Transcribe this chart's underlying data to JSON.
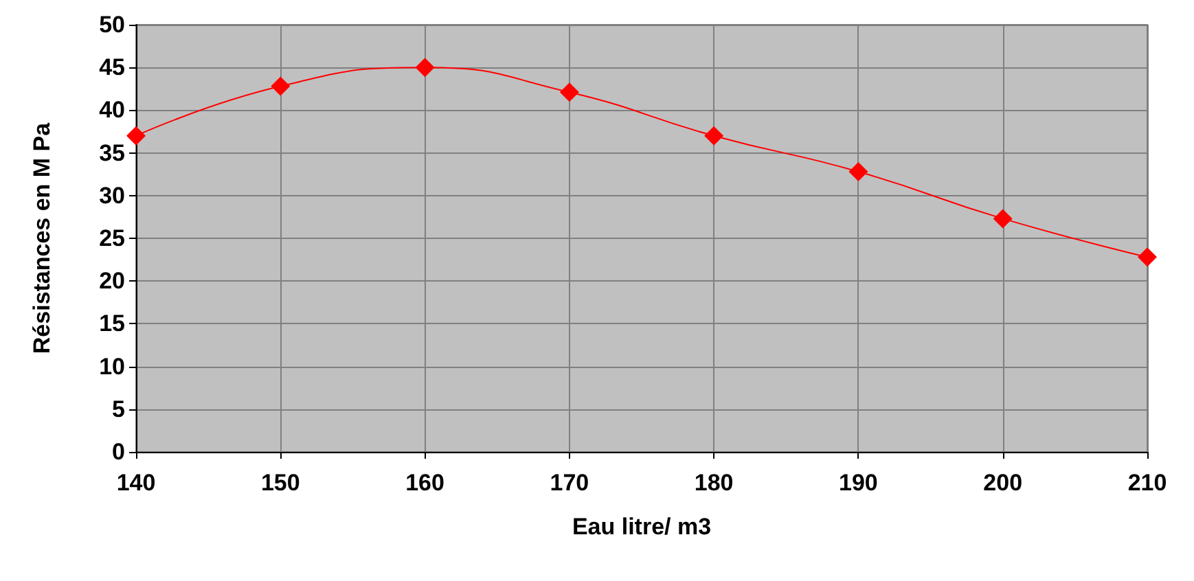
{
  "chart_data": {
    "type": "line",
    "xlabel": "Eau litre/ m3",
    "ylabel": "Résistances en M Pa",
    "x": [
      140,
      150,
      160,
      170,
      180,
      190,
      200,
      210
    ],
    "series": [
      {
        "color": "#ff0000",
        "values": [
          37,
          42.8,
          45,
          42.1,
          37,
          32.8,
          27.3,
          22.8
        ]
      }
    ],
    "xlim": [
      140,
      210
    ],
    "xticks": [
      140,
      150,
      160,
      170,
      180,
      190,
      200,
      210
    ],
    "ylim": [
      0,
      50
    ],
    "yticks": [
      0,
      5,
      10,
      15,
      20,
      25,
      30,
      35,
      40,
      45,
      50
    ],
    "grid": true,
    "marker": "diamond",
    "line_style": "solid"
  }
}
